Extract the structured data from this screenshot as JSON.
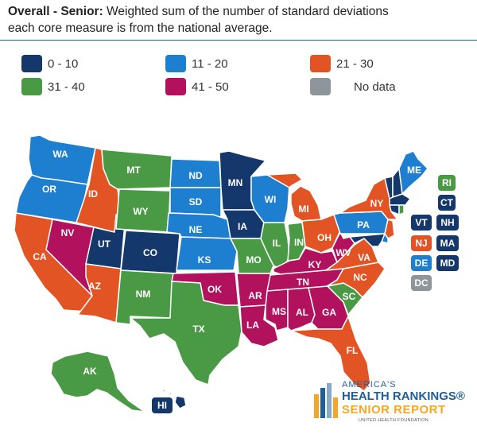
{
  "header": {
    "title": "Overall - Senior:",
    "description_line1": " Weighted sum of the number of standard deviations",
    "description_line2": "each core measure is from the national average."
  },
  "legend": [
    {
      "label": "0 - 10",
      "color": "#14386b"
    },
    {
      "label": "11 - 20",
      "color": "#1e7fd0"
    },
    {
      "label": "21 - 30",
      "color": "#e25424"
    },
    {
      "label": "31 - 40",
      "color": "#4a9a45"
    },
    {
      "label": "41 - 50",
      "color": "#b2125d"
    },
    {
      "label": "No data",
      "color": "#8e959b"
    }
  ],
  "states": {
    "WA": {
      "label": "WA",
      "group": "11-20"
    },
    "OR": {
      "label": "OR",
      "group": "11-20"
    },
    "CA": {
      "label": "CA",
      "group": "21-30"
    },
    "ID": {
      "label": "ID",
      "group": "21-30"
    },
    "NV": {
      "label": "NV",
      "group": "41-50"
    },
    "UT": {
      "label": "UT",
      "group": "0-10"
    },
    "AZ": {
      "label": "AZ",
      "group": "21-30"
    },
    "MT": {
      "label": "MT",
      "group": "31-40"
    },
    "WY": {
      "label": "WY",
      "group": "31-40"
    },
    "CO": {
      "label": "CO",
      "group": "0-10"
    },
    "NM": {
      "label": "NM",
      "group": "31-40"
    },
    "ND": {
      "label": "ND",
      "group": "11-20"
    },
    "SD": {
      "label": "SD",
      "group": "11-20"
    },
    "NE": {
      "label": "NE",
      "group": "11-20"
    },
    "KS": {
      "label": "KS",
      "group": "11-20"
    },
    "OK": {
      "label": "OK",
      "group": "41-50"
    },
    "TX": {
      "label": "TX",
      "group": "31-40"
    },
    "MN": {
      "label": "MN",
      "group": "0-10"
    },
    "IA": {
      "label": "IA",
      "group": "0-10"
    },
    "MO": {
      "label": "MO",
      "group": "31-40"
    },
    "AR": {
      "label": "AR",
      "group": "41-50"
    },
    "LA": {
      "label": "LA",
      "group": "41-50"
    },
    "WI": {
      "label": "WI",
      "group": "11-20"
    },
    "IL": {
      "label": "IL",
      "group": "31-40"
    },
    "MI": {
      "label": "MI",
      "group": "21-30"
    },
    "IN": {
      "label": "IN",
      "group": "31-40"
    },
    "OH": {
      "label": "OH",
      "group": "21-30"
    },
    "KY": {
      "label": "KY",
      "group": "41-50"
    },
    "TN": {
      "label": "TN",
      "group": "41-50"
    },
    "MS": {
      "label": "MS",
      "group": "41-50"
    },
    "AL": {
      "label": "AL",
      "group": "41-50"
    },
    "GA": {
      "label": "GA",
      "group": "41-50"
    },
    "FL": {
      "label": "FL",
      "group": "21-30"
    },
    "SC": {
      "label": "SC",
      "group": "31-40"
    },
    "NC": {
      "label": "NC",
      "group": "21-30"
    },
    "VA": {
      "label": "VA",
      "group": "21-30"
    },
    "WV": {
      "label": "WV",
      "group": "41-50"
    },
    "PA": {
      "label": "PA",
      "group": "11-20"
    },
    "NY": {
      "label": "NY",
      "group": "21-30"
    },
    "ME": {
      "label": "ME",
      "group": "11-20"
    },
    "AK": {
      "label": "AK",
      "group": "31-40"
    },
    "HI": {
      "label": "HI",
      "group": "0-10"
    },
    "VT": {
      "label": "VT",
      "group": "0-10"
    },
    "NH": {
      "label": "NH",
      "group": "0-10"
    },
    "MA": {
      "label": "MA",
      "group": "0-10"
    },
    "RI": {
      "label": "RI",
      "group": "31-40"
    },
    "CT": {
      "label": "CT",
      "group": "0-10"
    },
    "NJ": {
      "label": "NJ",
      "group": "21-30"
    },
    "DE": {
      "label": "DE",
      "group": "11-20"
    },
    "MD": {
      "label": "MD",
      "group": "0-10"
    },
    "DC": {
      "label": "DC",
      "group": "No data"
    }
  },
  "logo": {
    "line1": "AMERICA'S",
    "line2": "HEALTH RANKINGS®",
    "line3": "SENIOR REPORT",
    "line4": "UNITED HEALTH FOUNDATION"
  }
}
